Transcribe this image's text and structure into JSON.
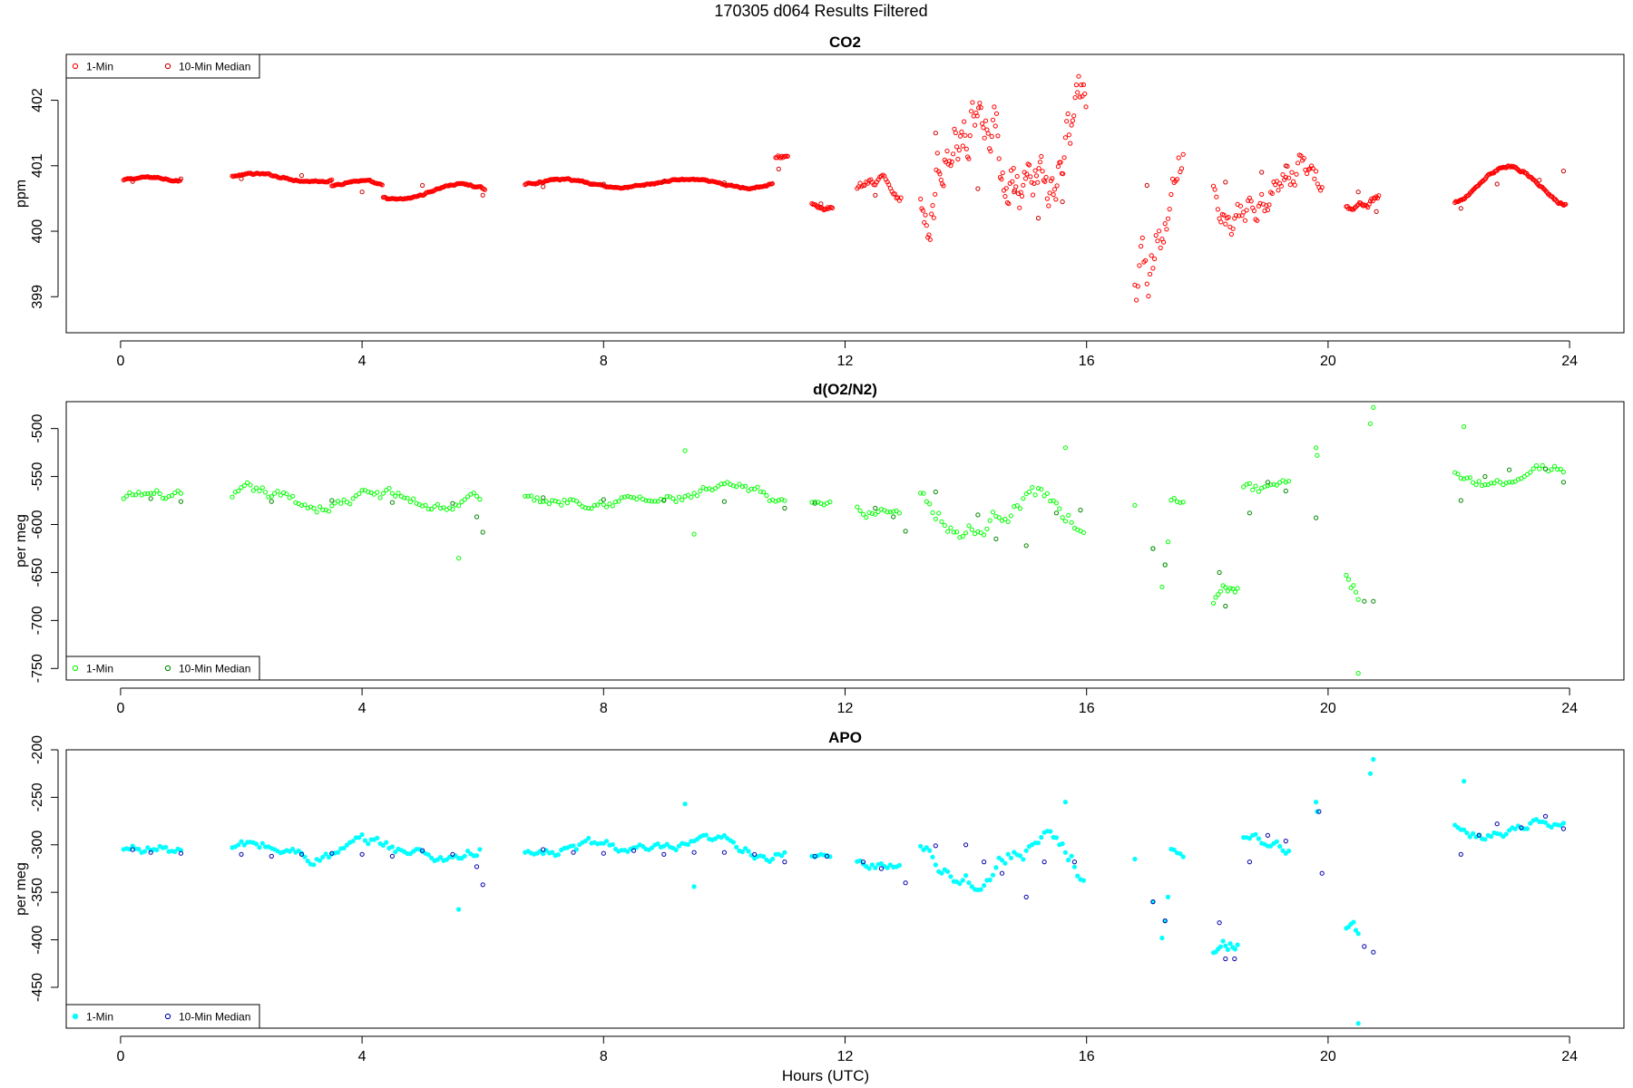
{
  "figure": {
    "title": "170305   d064   Results Filtered",
    "xlabel": "Hours (UTC)"
  },
  "chart_data": [
    {
      "type": "scatter",
      "title": "CO2",
      "ylabel": "ppm",
      "xlim": [
        -0.9,
        24.9
      ],
      "ylim": [
        398.45,
        402.7
      ],
      "xticks": [
        0,
        4,
        8,
        12,
        16,
        20,
        24
      ],
      "yticks": [
        399,
        400,
        401,
        402
      ],
      "legend": {
        "position": "top-left",
        "entries": [
          "1-Min",
          "10-Min Median"
        ]
      },
      "series": [
        {
          "name": "1-Min",
          "color": "#ff0000",
          "marker": "open-circle",
          "segments": [
            {
              "x0": 0.05,
              "x1": 1.0,
              "step": 0.017,
              "base": 400.77,
              "amp": 0.05,
              "noise": 0.02
            },
            {
              "x0": 1.85,
              "x1": 3.5,
              "step": 0.017,
              "base": 400.82,
              "amp": 0.05,
              "noise": 0.02
            },
            {
              "x0": 3.5,
              "x1": 4.35,
              "step": 0.017,
              "base": 400.65,
              "amp": 0.12,
              "noise": 0.02
            },
            {
              "x0": 4.35,
              "x1": 6.05,
              "step": 0.017,
              "base": 400.6,
              "amp": 0.12,
              "noise": 0.02
            },
            {
              "x0": 6.7,
              "x1": 10.8,
              "step": 0.017,
              "base": 400.73,
              "amp": 0.06,
              "noise": 0.02
            },
            {
              "x0": 10.85,
              "x1": 11.05,
              "step": 0.02,
              "base": 401.0,
              "amp": 0.15,
              "noise": 0.05
            },
            {
              "x0": 11.45,
              "x1": 11.8,
              "step": 0.02,
              "base": 400.55,
              "amp": 0.2,
              "noise": 0.05
            },
            {
              "x0": 12.2,
              "x1": 12.95,
              "step": 0.025,
              "base": 400.55,
              "amp": 0.15,
              "noise": 0.12
            },
            {
              "x0": 13.25,
              "x1": 16.0,
              "step": 0.02,
              "base": 401.1,
              "amp": 0.9,
              "noise": 0.6
            },
            {
              "x0": 16.8,
              "x1": 17.6,
              "step": 0.025,
              "base": 400.1,
              "amp": 0.9,
              "noise": 0.7
            },
            {
              "x0": 18.1,
              "x1": 19.9,
              "step": 0.025,
              "base": 400.65,
              "amp": 0.3,
              "noise": 0.35
            },
            {
              "x0": 20.3,
              "x1": 20.85,
              "step": 0.02,
              "base": 400.5,
              "amp": 0.15,
              "noise": 0.08
            },
            {
              "x0": 22.1,
              "x1": 23.95,
              "step": 0.017,
              "base": 400.7,
              "amp": 0.3,
              "noise": 0.03
            }
          ]
        },
        {
          "name": "10-Min Median",
          "color": "#cc0000",
          "marker": "open-circle",
          "points": [
            [
              0.2,
              400.76
            ],
            [
              1.0,
              400.8
            ],
            [
              2.0,
              400.8
            ],
            [
              3.0,
              400.85
            ],
            [
              4.0,
              400.6
            ],
            [
              5.0,
              400.7
            ],
            [
              6.0,
              400.55
            ],
            [
              7.0,
              400.68
            ],
            [
              8.0,
              400.72
            ],
            [
              9.0,
              400.76
            ],
            [
              10.0,
              400.74
            ],
            [
              10.9,
              400.95
            ],
            [
              11.6,
              400.42
            ],
            [
              12.5,
              400.55
            ],
            [
              13.5,
              401.5
            ],
            [
              14.2,
              400.65
            ],
            [
              14.8,
              400.6
            ],
            [
              15.2,
              400.2
            ],
            [
              15.6,
              400.45
            ],
            [
              17.0,
              400.7
            ],
            [
              18.3,
              400.75
            ],
            [
              18.9,
              400.9
            ],
            [
              19.3,
              401.0
            ],
            [
              20.5,
              400.6
            ],
            [
              20.8,
              400.3
            ],
            [
              22.2,
              400.35
            ],
            [
              22.8,
              400.72
            ],
            [
              23.5,
              400.78
            ],
            [
              23.9,
              400.92
            ]
          ]
        }
      ]
    },
    {
      "type": "scatter",
      "title": "d(O2/N2)",
      "ylabel": "per meg",
      "xlim": [
        -0.9,
        24.9
      ],
      "ylim": [
        -762,
        -472
      ],
      "xticks": [
        0,
        4,
        8,
        12,
        16,
        20,
        24
      ],
      "yticks": [
        -750,
        -700,
        -650,
        -600,
        -550,
        -500
      ],
      "legend": {
        "position": "bottom-left",
        "entries": [
          "1-Min",
          "10-Min Median"
        ]
      },
      "series": [
        {
          "name": "1-Min",
          "color": "#00ff00",
          "marker": "open-circle",
          "segments": [
            {
              "x0": 0.05,
              "x1": 1.05,
              "step": 0.05,
              "base": -575,
              "amp": 4,
              "noise": 8
            },
            {
              "x0": 1.85,
              "x1": 5.95,
              "step": 0.05,
              "base": -575,
              "amp": 5,
              "noise": 10
            },
            {
              "x0": 6.7,
              "x1": 11.05,
              "step": 0.05,
              "base": -572,
              "amp": 4,
              "noise": 9
            },
            {
              "x0": 11.45,
              "x1": 11.8,
              "step": 0.05,
              "base": -580,
              "amp": 2,
              "noise": 4
            },
            {
              "x0": 12.2,
              "x1": 12.95,
              "step": 0.05,
              "base": -582,
              "amp": 3,
              "noise": 8
            },
            {
              "x0": 13.25,
              "x1": 16.0,
              "step": 0.05,
              "base": -585,
              "amp": 18,
              "noise": 15
            },
            {
              "x0": 17.4,
              "x1": 17.6,
              "step": 0.05,
              "base": -570,
              "amp": 8,
              "noise": 6
            },
            {
              "x0": 18.1,
              "x1": 18.5,
              "step": 0.04,
              "base": -685,
              "amp": 10,
              "noise": 15
            },
            {
              "x0": 18.6,
              "x1": 19.4,
              "step": 0.05,
              "base": -560,
              "amp": 8,
              "noise": 10
            },
            {
              "x0": 20.3,
              "x1": 20.5,
              "step": 0.04,
              "base": -665,
              "amp": 15,
              "noise": 15
            },
            {
              "x0": 22.1,
              "x1": 23.95,
              "step": 0.05,
              "base": -548,
              "amp": 8,
              "noise": 8
            }
          ],
          "points": [
            [
              5.6,
              -635
            ],
            [
              9.35,
              -523
            ],
            [
              9.5,
              -610
            ],
            [
              16.8,
              -580
            ],
            [
              17.1,
              -625
            ],
            [
              17.25,
              -665
            ],
            [
              17.3,
              -642
            ],
            [
              17.35,
              -618
            ],
            [
              19.8,
              -520
            ],
            [
              19.82,
              -528
            ],
            [
              20.5,
              -755
            ],
            [
              20.75,
              -478
            ],
            [
              20.7,
              -495
            ],
            [
              22.25,
              -498
            ],
            [
              15.65,
              -520
            ]
          ]
        },
        {
          "name": "10-Min Median",
          "color": "#008800",
          "marker": "open-circle",
          "points": [
            [
              0.5,
              -573
            ],
            [
              1.0,
              -576
            ],
            [
              2.5,
              -576
            ],
            [
              3.5,
              -575
            ],
            [
              4.5,
              -577
            ],
            [
              5.5,
              -578
            ],
            [
              5.9,
              -592
            ],
            [
              6.0,
              -608
            ],
            [
              7.0,
              -572
            ],
            [
              8.0,
              -574
            ],
            [
              9.0,
              -575
            ],
            [
              10.0,
              -576
            ],
            [
              11.0,
              -583
            ],
            [
              11.5,
              -578
            ],
            [
              12.5,
              -583
            ],
            [
              12.8,
              -592
            ],
            [
              13.0,
              -607
            ],
            [
              13.5,
              -566
            ],
            [
              14.2,
              -590
            ],
            [
              14.5,
              -615
            ],
            [
              15.0,
              -622
            ],
            [
              15.5,
              -588
            ],
            [
              15.9,
              -585
            ],
            [
              17.1,
              -625
            ],
            [
              17.3,
              -642
            ],
            [
              18.2,
              -650
            ],
            [
              18.3,
              -685
            ],
            [
              18.7,
              -588
            ],
            [
              19.0,
              -556
            ],
            [
              19.3,
              -565
            ],
            [
              19.8,
              -593
            ],
            [
              20.6,
              -680
            ],
            [
              20.75,
              -680
            ],
            [
              22.2,
              -575
            ],
            [
              22.6,
              -550
            ],
            [
              23.0,
              -543
            ],
            [
              23.6,
              -542
            ],
            [
              23.9,
              -556
            ]
          ]
        }
      ]
    },
    {
      "type": "scatter",
      "title": "APO",
      "ylabel": "per meg",
      "xlim": [
        -0.9,
        24.9
      ],
      "ylim": [
        -493,
        -200
      ],
      "xticks": [
        0,
        4,
        8,
        12,
        16,
        20,
        24
      ],
      "yticks": [
        -450,
        -400,
        -350,
        -300,
        -250,
        -200
      ],
      "legend": {
        "position": "bottom-left",
        "entries": [
          "1-Min",
          "10-Min Median"
        ]
      },
      "series": [
        {
          "name": "1-Min",
          "color": "#00ffff",
          "marker": "filled-circle",
          "segments": [
            {
              "x0": 0.05,
              "x1": 1.05,
              "step": 0.05,
              "base": -307,
              "amp": 4,
              "noise": 8
            },
            {
              "x0": 1.85,
              "x1": 5.95,
              "step": 0.05,
              "base": -307,
              "amp": 5,
              "noise": 10
            },
            {
              "x0": 6.7,
              "x1": 11.05,
              "step": 0.05,
              "base": -306,
              "amp": 4,
              "noise": 9
            },
            {
              "x0": 11.45,
              "x1": 11.8,
              "step": 0.05,
              "base": -315,
              "amp": 2,
              "noise": 4
            },
            {
              "x0": 12.2,
              "x1": 12.95,
              "step": 0.05,
              "base": -318,
              "amp": 3,
              "noise": 8
            },
            {
              "x0": 13.25,
              "x1": 16.0,
              "step": 0.05,
              "base": -315,
              "amp": 18,
              "noise": 15
            },
            {
              "x0": 17.4,
              "x1": 17.6,
              "step": 0.05,
              "base": -305,
              "amp": 8,
              "noise": 6
            },
            {
              "x0": 18.1,
              "x1": 18.5,
              "step": 0.04,
              "base": -420,
              "amp": 10,
              "noise": 15
            },
            {
              "x0": 18.6,
              "x1": 19.4,
              "step": 0.05,
              "base": -290,
              "amp": 8,
              "noise": 10
            },
            {
              "x0": 20.3,
              "x1": 20.5,
              "step": 0.04,
              "base": -400,
              "amp": 15,
              "noise": 15
            },
            {
              "x0": 22.1,
              "x1": 23.95,
              "step": 0.05,
              "base": -280,
              "amp": 8,
              "noise": 8
            }
          ],
          "points": [
            [
              5.6,
              -368
            ],
            [
              9.35,
              -257
            ],
            [
              9.5,
              -344
            ],
            [
              16.8,
              -315
            ],
            [
              17.1,
              -360
            ],
            [
              17.25,
              -398
            ],
            [
              17.3,
              -380
            ],
            [
              17.35,
              -355
            ],
            [
              19.8,
              -255
            ],
            [
              19.82,
              -265
            ],
            [
              20.5,
              -488
            ],
            [
              20.75,
              -210
            ],
            [
              20.7,
              -225
            ],
            [
              22.25,
              -233
            ],
            [
              15.65,
              -255
            ]
          ]
        },
        {
          "name": "10-Min Median",
          "color": "#0000aa",
          "marker": "open-circle",
          "points": [
            [
              0.2,
              -305
            ],
            [
              0.5,
              -308
            ],
            [
              1.0,
              -309
            ],
            [
              2.0,
              -310
            ],
            [
              2.5,
              -312
            ],
            [
              3.0,
              -310
            ],
            [
              3.5,
              -309
            ],
            [
              4.0,
              -310
            ],
            [
              4.5,
              -312
            ],
            [
              5.0,
              -306
            ],
            [
              5.5,
              -310
            ],
            [
              5.9,
              -323
            ],
            [
              6.0,
              -342
            ],
            [
              7.0,
              -305
            ],
            [
              7.5,
              -308
            ],
            [
              8.0,
              -309
            ],
            [
              8.5,
              -306
            ],
            [
              9.0,
              -310
            ],
            [
              9.5,
              -308
            ],
            [
              10.0,
              -308
            ],
            [
              10.5,
              -310
            ],
            [
              11.0,
              -318
            ],
            [
              11.5,
              -312
            ],
            [
              11.7,
              -312
            ],
            [
              12.3,
              -318
            ],
            [
              12.6,
              -325
            ],
            [
              13.0,
              -340
            ],
            [
              13.5,
              -301
            ],
            [
              14.0,
              -300
            ],
            [
              14.3,
              -318
            ],
            [
              14.6,
              -330
            ],
            [
              15.0,
              -355
            ],
            [
              15.3,
              -318
            ],
            [
              15.8,
              -318
            ],
            [
              17.1,
              -360
            ],
            [
              17.3,
              -380
            ],
            [
              18.2,
              -382
            ],
            [
              18.3,
              -420
            ],
            [
              18.45,
              -420
            ],
            [
              18.7,
              -318
            ],
            [
              19.0,
              -290
            ],
            [
              19.3,
              -296
            ],
            [
              19.85,
              -265
            ],
            [
              19.9,
              -330
            ],
            [
              20.6,
              -407
            ],
            [
              20.75,
              -413
            ],
            [
              22.2,
              -310
            ],
            [
              22.5,
              -290
            ],
            [
              22.8,
              -278
            ],
            [
              23.2,
              -282
            ],
            [
              23.6,
              -270
            ],
            [
              23.9,
              -283
            ]
          ]
        }
      ]
    }
  ]
}
